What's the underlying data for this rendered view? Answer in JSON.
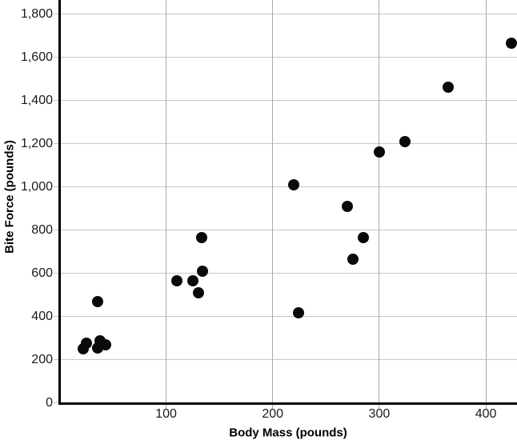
{
  "chart_data": {
    "type": "scatter",
    "title": "",
    "xlabel": "Body Mass (pounds)",
    "ylabel": "Bite Force (pounds)",
    "xlim": [
      0,
      429
    ],
    "ylim": [
      0,
      1865
    ],
    "grid": true,
    "legend": "none",
    "point_color": "#0a0a0a",
    "hgrid_color": "#c6c6c6",
    "vgrid_color": "#a9a9a9",
    "axis_color": "#000000",
    "y_ticks": [
      {
        "value": 0,
        "label": "0"
      },
      {
        "value": 200,
        "label": "200"
      },
      {
        "value": 400,
        "label": "400"
      },
      {
        "value": 600,
        "label": "600"
      },
      {
        "value": 800,
        "label": "800"
      },
      {
        "value": 1000,
        "label": "1,000"
      },
      {
        "value": 1200,
        "label": "1,200"
      },
      {
        "value": 1400,
        "label": "1,400"
      },
      {
        "value": 1600,
        "label": "1,600"
      },
      {
        "value": 1800,
        "label": "1,800"
      }
    ],
    "x_ticks": [
      {
        "value": 100,
        "label": "100"
      },
      {
        "value": 200,
        "label": "200"
      },
      {
        "value": 300,
        "label": "300"
      },
      {
        "value": 400,
        "label": "400"
      }
    ],
    "points": [
      {
        "body_mass": 22,
        "bite_force": 250
      },
      {
        "body_mass": 25,
        "bite_force": 275
      },
      {
        "body_mass": 36,
        "bite_force": 255
      },
      {
        "body_mass": 38,
        "bite_force": 287
      },
      {
        "body_mass": 43,
        "bite_force": 268
      },
      {
        "body_mass": 36,
        "bite_force": 470
      },
      {
        "body_mass": 110,
        "bite_force": 565
      },
      {
        "body_mass": 125,
        "bite_force": 565
      },
      {
        "body_mass": 130,
        "bite_force": 510
      },
      {
        "body_mass": 134,
        "bite_force": 610
      },
      {
        "body_mass": 133,
        "bite_force": 765
      },
      {
        "body_mass": 220,
        "bite_force": 1010
      },
      {
        "body_mass": 224,
        "bite_force": 415
      },
      {
        "body_mass": 270,
        "bite_force": 910
      },
      {
        "body_mass": 275,
        "bite_force": 665
      },
      {
        "body_mass": 285,
        "bite_force": 765
      },
      {
        "body_mass": 300,
        "bite_force": 1160
      },
      {
        "body_mass": 324,
        "bite_force": 1210
      },
      {
        "body_mass": 365,
        "bite_force": 1460
      },
      {
        "body_mass": 424,
        "bite_force": 1665
      }
    ]
  }
}
